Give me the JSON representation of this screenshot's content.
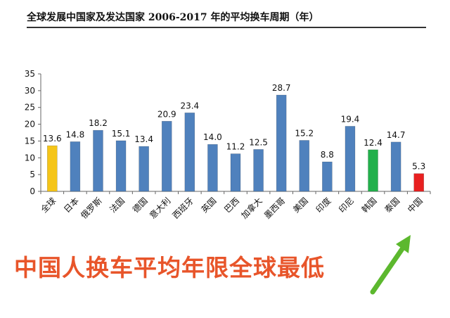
{
  "chart_data": {
    "type": "bar",
    "title": "全球发展中国家及发达国家 2006-2017 年的平均换车周期（年）",
    "xlabel": "",
    "ylabel": "",
    "ylim": [
      0,
      35
    ],
    "yticks": [
      0,
      5,
      10,
      15,
      20,
      25,
      30,
      35
    ],
    "categories": [
      "全球",
      "日本",
      "俄罗斯",
      "法国",
      "德国",
      "意大利",
      "西班牙",
      "英国",
      "巴西",
      "加拿大",
      "墨西哥",
      "美国",
      "印度",
      "印尼",
      "韩国",
      "泰国",
      "中国"
    ],
    "values": [
      13.6,
      14.8,
      18.2,
      15.1,
      13.4,
      20.9,
      23.4,
      14.0,
      11.2,
      12.5,
      28.7,
      15.2,
      8.8,
      19.4,
      12.4,
      14.7,
      5.3
    ],
    "value_labels": [
      "13.6",
      "14.8",
      "18.2",
      "15.1",
      "13.4",
      "20.9",
      "23.4",
      "14.0",
      "11.2",
      "12.5",
      "28.7",
      "15.2",
      "8.8",
      "19.4",
      "12.4",
      "14.7",
      "5.3"
    ],
    "bar_colors": [
      "#f5c518",
      "#4f81bd",
      "#4f81bd",
      "#4f81bd",
      "#4f81bd",
      "#4f81bd",
      "#4f81bd",
      "#4f81bd",
      "#4f81bd",
      "#4f81bd",
      "#4f81bd",
      "#4f81bd",
      "#4f81bd",
      "#4f81bd",
      "#22b04b",
      "#4f81bd",
      "#e82020"
    ],
    "grid": false,
    "legend": "none"
  },
  "callout": {
    "text": "中国人换车平均年限全球最低",
    "color": "#e8552a",
    "arrow_color": "#5cb82e"
  }
}
